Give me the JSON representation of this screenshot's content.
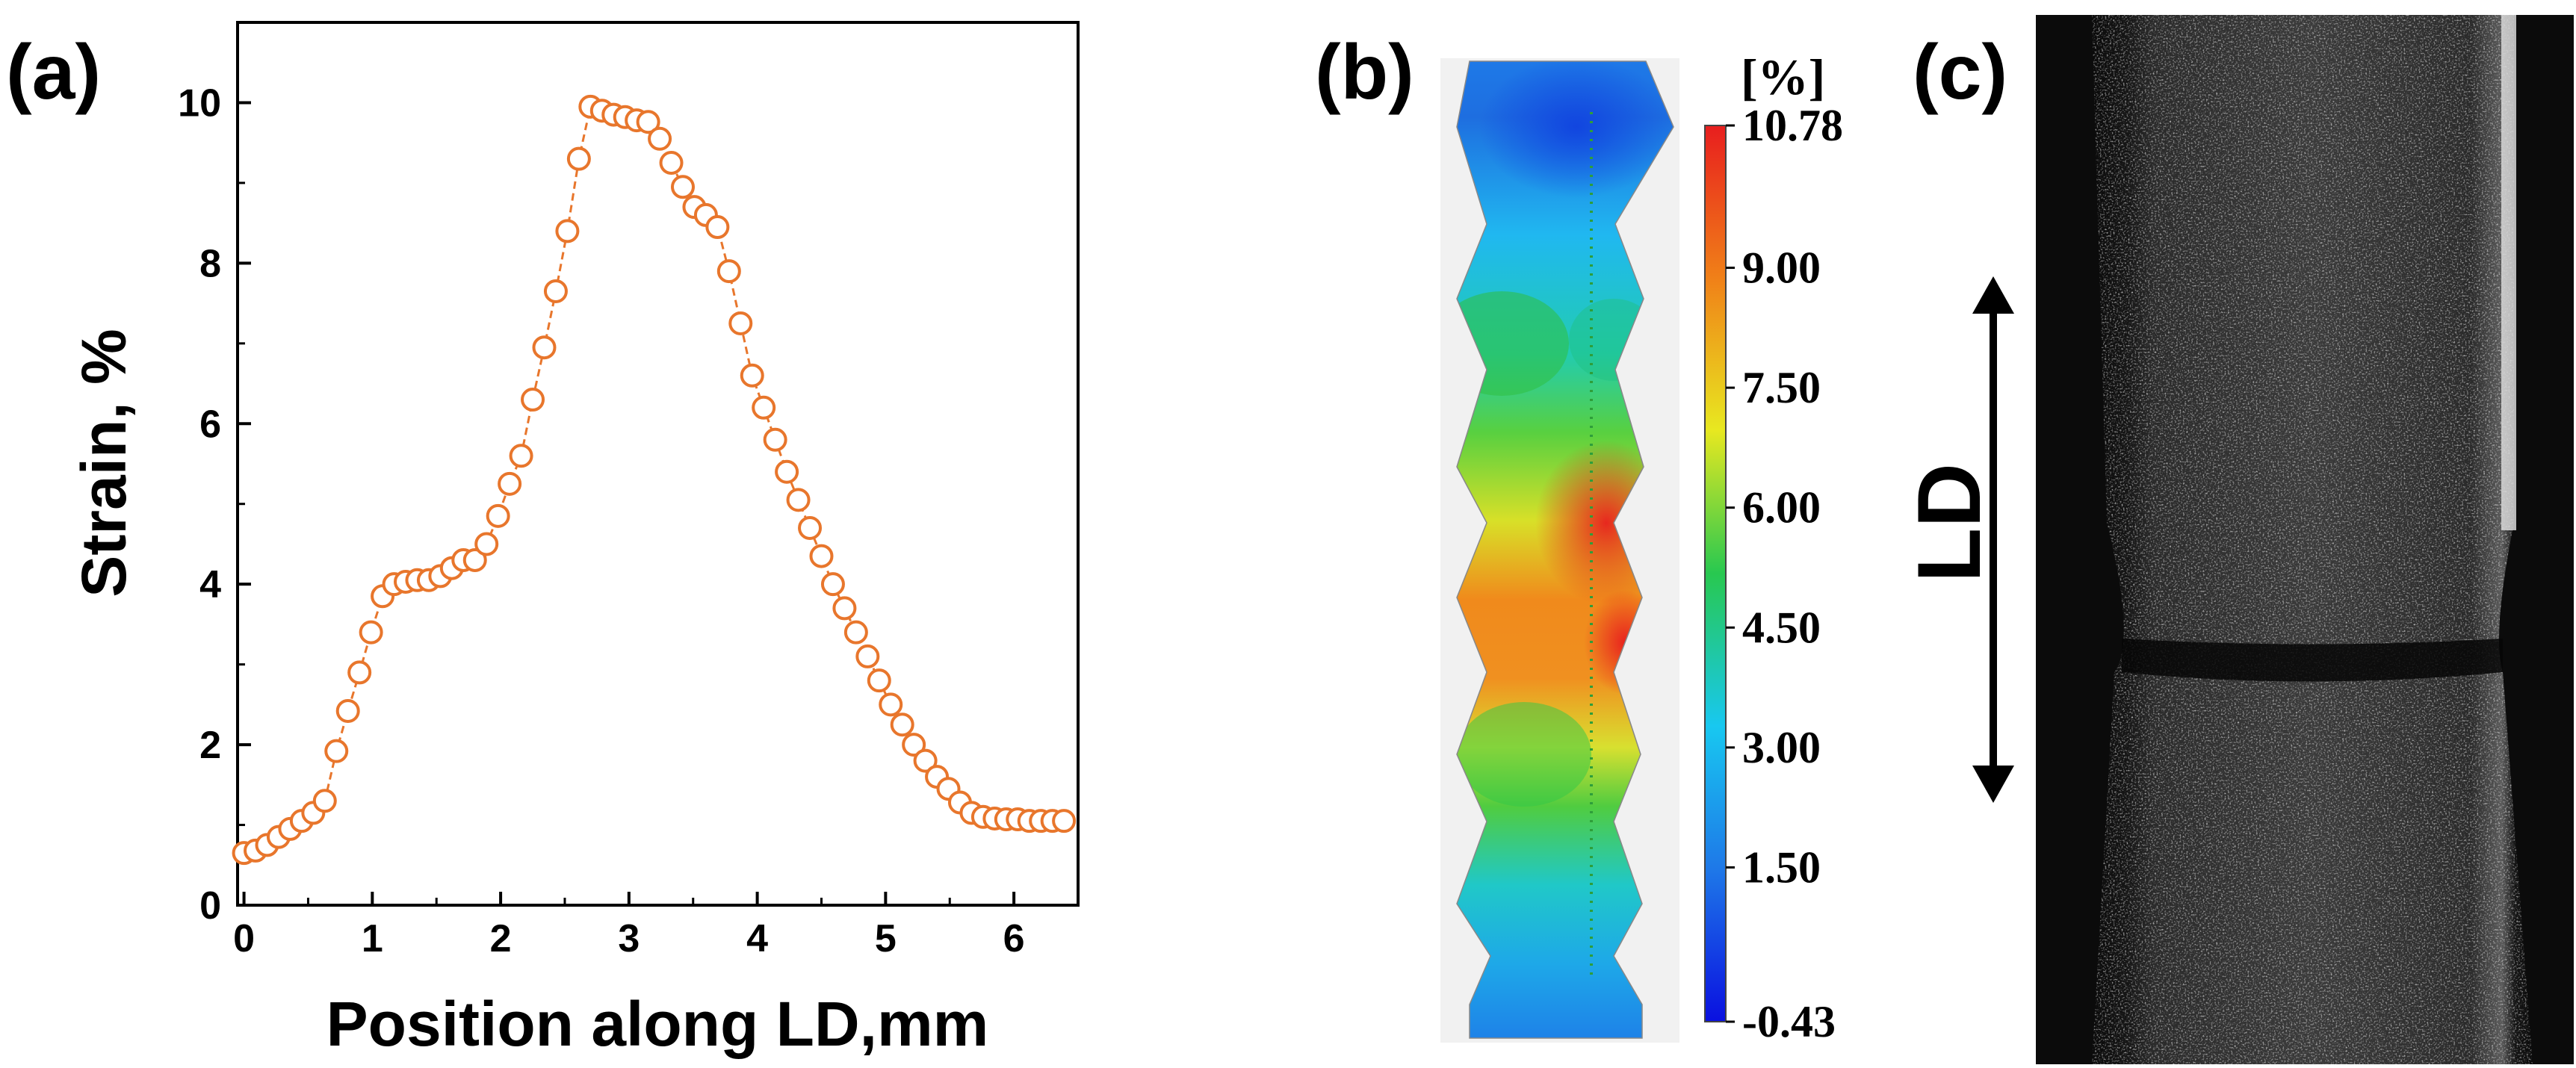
{
  "panels": {
    "a_label": "(a)",
    "b_label": "(b)",
    "c_label": "(c)"
  },
  "chart_data": [
    {
      "type": "line",
      "panel": "(a)",
      "title": "",
      "xlabel": "Position along LD,mm",
      "ylabel": "Strain, %",
      "xlim": [
        -0.05,
        6.5
      ],
      "ylim": [
        0,
        11
      ],
      "xticks": [
        0,
        1,
        2,
        3,
        4,
        5,
        6
      ],
      "yticks": [
        0,
        2,
        4,
        6,
        8,
        10
      ],
      "grid": false,
      "marker": "open-circle",
      "color": "#E8762C",
      "series": [
        {
          "name": "Strain",
          "x": [
            0.0,
            0.09,
            0.18,
            0.27,
            0.36,
            0.45,
            0.54,
            0.63,
            0.72,
            0.81,
            0.9,
            0.99,
            1.08,
            1.17,
            1.26,
            1.35,
            1.44,
            1.53,
            1.62,
            1.71,
            1.8,
            1.89,
            1.98,
            2.07,
            2.16,
            2.25,
            2.34,
            2.43,
            2.52,
            2.61,
            2.7,
            2.79,
            2.88,
            2.97,
            3.06,
            3.15,
            3.24,
            3.33,
            3.42,
            3.51,
            3.6,
            3.69,
            3.78,
            3.87,
            3.96,
            4.05,
            4.14,
            4.23,
            4.32,
            4.41,
            4.5,
            4.59,
            4.68,
            4.77,
            4.86,
            4.95,
            5.04,
            5.13,
            5.22,
            5.31,
            5.4,
            5.49,
            5.58,
            5.67,
            5.76,
            5.85,
            5.94,
            6.03,
            6.12,
            6.21,
            6.3,
            6.39
          ],
          "values": [
            0.65,
            0.68,
            0.75,
            0.85,
            0.95,
            1.05,
            1.15,
            1.3,
            1.92,
            2.42,
            2.9,
            3.4,
            3.85,
            4.0,
            4.03,
            4.05,
            4.05,
            4.1,
            4.2,
            4.3,
            4.3,
            4.5,
            4.85,
            5.25,
            5.6,
            6.3,
            6.95,
            7.65,
            8.4,
            9.3,
            9.95,
            9.9,
            9.85,
            9.82,
            9.78,
            9.76,
            9.55,
            9.25,
            8.95,
            8.7,
            8.6,
            8.45,
            7.9,
            7.25,
            6.6,
            6.2,
            5.8,
            5.4,
            5.05,
            4.7,
            4.35,
            4.0,
            3.7,
            3.4,
            3.1,
            2.8,
            2.5,
            2.25,
            2.0,
            1.8,
            1.6,
            1.45,
            1.28,
            1.15,
            1.1,
            1.08,
            1.07,
            1.07,
            1.05,
            1.05,
            1.05,
            1.05
          ]
        }
      ]
    },
    {
      "type": "heatmap",
      "panel": "(b)",
      "colorbar_unit": "[%]",
      "colorbar_range": [
        -0.43,
        10.78
      ],
      "colorbar_ticks": [
        "10.78",
        "9.00",
        "7.50",
        "6.00",
        "4.50",
        "3.00",
        "1.50",
        "-0.43"
      ],
      "colorbar_values": [
        10.78,
        9.0,
        7.5,
        6.0,
        4.5,
        3.0,
        1.5,
        -0.43
      ],
      "colormap": [
        "#0A10E0",
        "#1E78E8",
        "#18C8F0",
        "#28C850",
        "#E8E820",
        "#F08018",
        "#E81E1E"
      ],
      "profile_line": "dotted green vertical line along LD"
    }
  ],
  "panel_c": {
    "arrow_label": "LD"
  }
}
